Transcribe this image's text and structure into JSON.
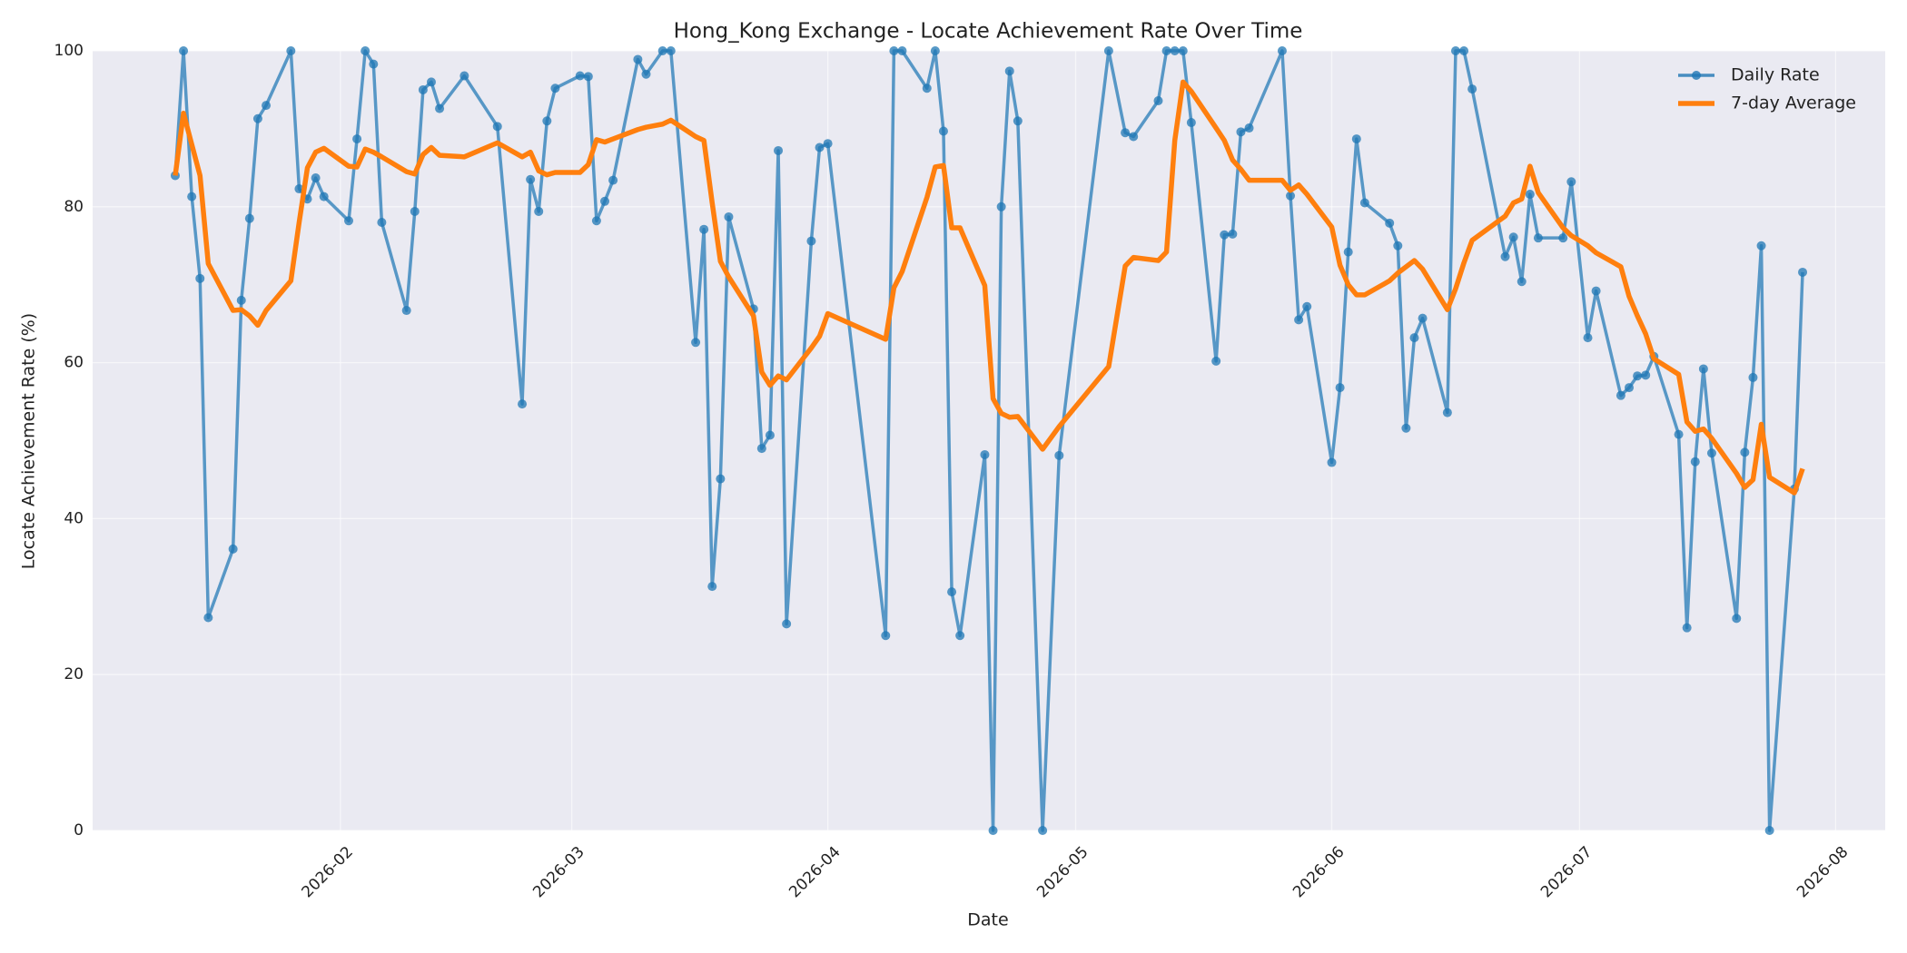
{
  "chart_data": {
    "type": "line",
    "title": "Hong_Kong Exchange - Locate Achievement Rate Over Time",
    "x_label": "Date",
    "y_label": "Locate Achievement Rate (%)",
    "x": [
      "2026-01-12",
      "2026-01-13",
      "2026-01-14",
      "2026-01-15",
      "2026-01-16",
      "2026-01-19",
      "2026-01-20",
      "2026-01-21",
      "2026-01-22",
      "2026-01-23",
      "2026-01-26",
      "2026-01-27",
      "2026-01-28",
      "2026-01-29",
      "2026-01-30",
      "2026-02-02",
      "2026-02-03",
      "2026-02-04",
      "2026-02-05",
      "2026-02-06",
      "2026-02-09",
      "2026-02-10",
      "2026-02-11",
      "2026-02-12",
      "2026-02-13",
      "2026-02-16",
      "2026-02-20",
      "2026-02-23",
      "2026-02-24",
      "2026-02-25",
      "2026-02-26",
      "2026-02-27",
      "2026-03-02",
      "2026-03-03",
      "2026-03-04",
      "2026-03-05",
      "2026-03-06",
      "2026-03-09",
      "2026-03-10",
      "2026-03-12",
      "2026-03-13",
      "2026-03-16",
      "2026-03-17",
      "2026-03-18",
      "2026-03-19",
      "2026-03-20",
      "2026-03-23",
      "2026-03-24",
      "2026-03-25",
      "2026-03-26",
      "2026-03-27",
      "2026-03-30",
      "2026-03-31",
      "2026-04-01",
      "2026-04-08",
      "2026-04-09",
      "2026-04-10",
      "2026-04-13",
      "2026-04-14",
      "2026-04-15",
      "2026-04-16",
      "2026-04-17",
      "2026-04-20",
      "2026-04-21",
      "2026-04-22",
      "2026-04-23",
      "2026-04-24",
      "2026-04-27",
      "2026-04-29",
      "2026-05-05",
      "2026-05-07",
      "2026-05-08",
      "2026-05-11",
      "2026-05-12",
      "2026-05-13",
      "2026-05-14",
      "2026-05-15",
      "2026-05-18",
      "2026-05-19",
      "2026-05-20",
      "2026-05-21",
      "2026-05-22",
      "2026-05-26",
      "2026-05-27",
      "2026-05-28",
      "2026-05-29",
      "2026-06-01",
      "2026-06-02",
      "2026-06-03",
      "2026-06-04",
      "2026-06-05",
      "2026-06-08",
      "2026-06-09",
      "2026-06-10",
      "2026-06-11",
      "2026-06-12",
      "2026-06-15",
      "2026-06-16",
      "2026-06-17",
      "2026-06-18",
      "2026-06-22",
      "2026-06-23",
      "2026-06-24",
      "2026-06-25",
      "2026-06-26",
      "2026-06-29",
      "2026-06-30",
      "2026-07-02",
      "2026-07-03",
      "2026-07-06",
      "2026-07-07",
      "2026-07-08",
      "2026-07-09",
      "2026-07-10",
      "2026-07-13",
      "2026-07-14",
      "2026-07-15",
      "2026-07-16",
      "2026-07-17",
      "2026-07-20",
      "2026-07-21",
      "2026-07-22",
      "2026-07-23",
      "2026-07-24",
      "2026-07-27",
      "2026-07-28"
    ],
    "series": [
      {
        "name": "Daily Rate",
        "color": "#1f77b4",
        "marker": true,
        "values": [
          84,
          100,
          81.3,
          70.8,
          27.3,
          36.1,
          68,
          78.5,
          91.3,
          93,
          100,
          82.3,
          81,
          83.7,
          81.3,
          78.2,
          88.7,
          100,
          98.3,
          78,
          66.7,
          79.4,
          95,
          96,
          92.6,
          96.8,
          90.3,
          54.7,
          83.5,
          79.4,
          91,
          95.2,
          96.8,
          96.7,
          78.2,
          80.7,
          83.4,
          98.9,
          97,
          100,
          100,
          62.6,
          77.1,
          31.3,
          45.1,
          78.7,
          66.9,
          49,
          50.7,
          87.2,
          26.5,
          75.6,
          87.6,
          88.1,
          25,
          100,
          100,
          95.2,
          100,
          89.7,
          30.6,
          25,
          48.2,
          0,
          80,
          97.4,
          91,
          0,
          48.1,
          100,
          89.5,
          89,
          93.6,
          100,
          100,
          100,
          90.8,
          60.2,
          76.4,
          76.5,
          89.6,
          90.1,
          100,
          81.4,
          65.5,
          67.2,
          47.2,
          56.8,
          74.2,
          88.7,
          80.5,
          77.9,
          75,
          51.6,
          63.2,
          65.7,
          53.6,
          100,
          100,
          95.1,
          73.6,
          76.1,
          70.4,
          81.6,
          76,
          76,
          83.2,
          63.2,
          69.2,
          55.8,
          56.8,
          58.3,
          58.4,
          60.8,
          50.8,
          26,
          47.3,
          59.2,
          48.4,
          27.2,
          48.5,
          58.1,
          75,
          0,
          43.8,
          71.6
        ]
      },
      {
        "name": "7-day Average",
        "color": "#ff7f0e",
        "marker": false,
        "values": [
          84,
          92,
          88,
          84,
          72.7,
          66.7,
          66.8,
          66,
          64.8,
          66.7,
          70.5,
          78,
          85,
          87,
          87.5,
          85.2,
          85.1,
          87.4,
          87,
          86.4,
          84.5,
          84.2,
          86.7,
          87.6,
          86.6,
          86.4,
          88.2,
          86.4,
          87,
          84.6,
          84.1,
          84.4,
          84.4,
          85.4,
          88.6,
          88.3,
          88.7,
          89.9,
          90.2,
          90.6,
          91.1,
          89,
          88.5,
          80.5,
          73,
          71,
          66,
          58.8,
          57.1,
          58.3,
          57.8,
          61.9,
          63.4,
          66.3,
          63,
          69.6,
          71.7,
          81.2,
          85.1,
          85.3,
          77.3,
          77.3,
          69.9,
          55.4,
          53.5,
          53,
          53.1,
          48.9,
          51.8,
          59.5,
          72.4,
          73.5,
          73.1,
          74.2,
          88.5,
          96,
          94.8,
          90.1,
          88.5,
          86,
          84.8,
          83.4,
          83.4,
          82.1,
          82.8,
          81.6,
          77.4,
          72.5,
          70,
          68.7,
          68.7,
          70.5,
          71.5,
          72.3,
          73.1,
          72,
          66.8,
          69.5,
          72.8,
          75.7,
          78.8,
          80.5,
          81,
          85.2,
          81.8,
          77.3,
          76.3,
          75,
          74.1,
          72.3,
          68.5,
          66,
          63.7,
          60.5,
          58.5,
          52.4,
          51.2,
          51.5,
          50.3,
          45.8,
          44,
          45,
          52.1,
          45.3,
          43.3,
          46.4
        ]
      }
    ],
    "xlim": [
      "2026-01-02",
      "2026-08-07"
    ],
    "xticks": [
      {
        "value": "2026-02-01",
        "label": "2026-02"
      },
      {
        "value": "2026-03-01",
        "label": "2026-03"
      },
      {
        "value": "2026-04-01",
        "label": "2026-04"
      },
      {
        "value": "2026-05-01",
        "label": "2026-05"
      },
      {
        "value": "2026-06-01",
        "label": "2026-06"
      },
      {
        "value": "2026-07-01",
        "label": "2026-07"
      },
      {
        "value": "2026-08-01",
        "label": "2026-08"
      }
    ],
    "ylim": [
      0,
      100
    ],
    "yticks": [
      0,
      20,
      40,
      60,
      80,
      100
    ],
    "grid": true,
    "legend": "upper right"
  }
}
